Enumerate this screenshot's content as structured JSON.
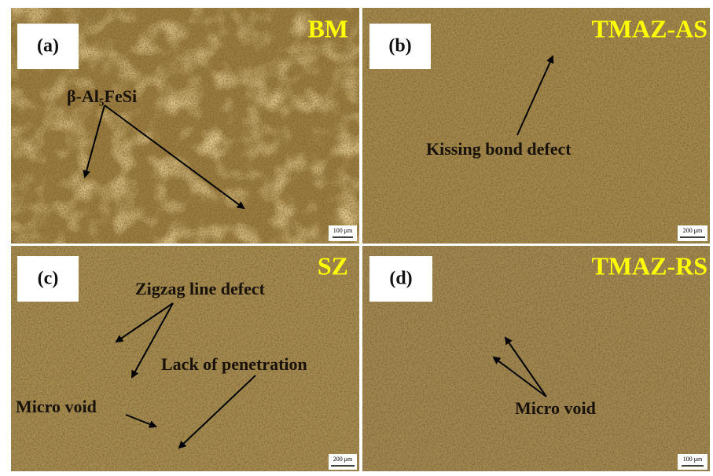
{
  "panels": [
    {
      "label": "(a)",
      "zone": "BM",
      "annotations": [
        "β-Al₅FeSi"
      ],
      "scale": "100 μm"
    },
    {
      "label": "(b)",
      "zone": "TMAZ-AS",
      "annotations": [
        "Kissing bond defect"
      ],
      "scale": "200 μm"
    },
    {
      "label": "(c)",
      "zone": "SZ",
      "annotations": [
        "Zigzag line defect",
        "Lack of penetration",
        "Micro void"
      ],
      "scale": "200 μm"
    },
    {
      "label": "(d)",
      "zone": "TMAZ-RS",
      "annotations": [
        "Micro void"
      ],
      "scale": "100 μm"
    }
  ]
}
